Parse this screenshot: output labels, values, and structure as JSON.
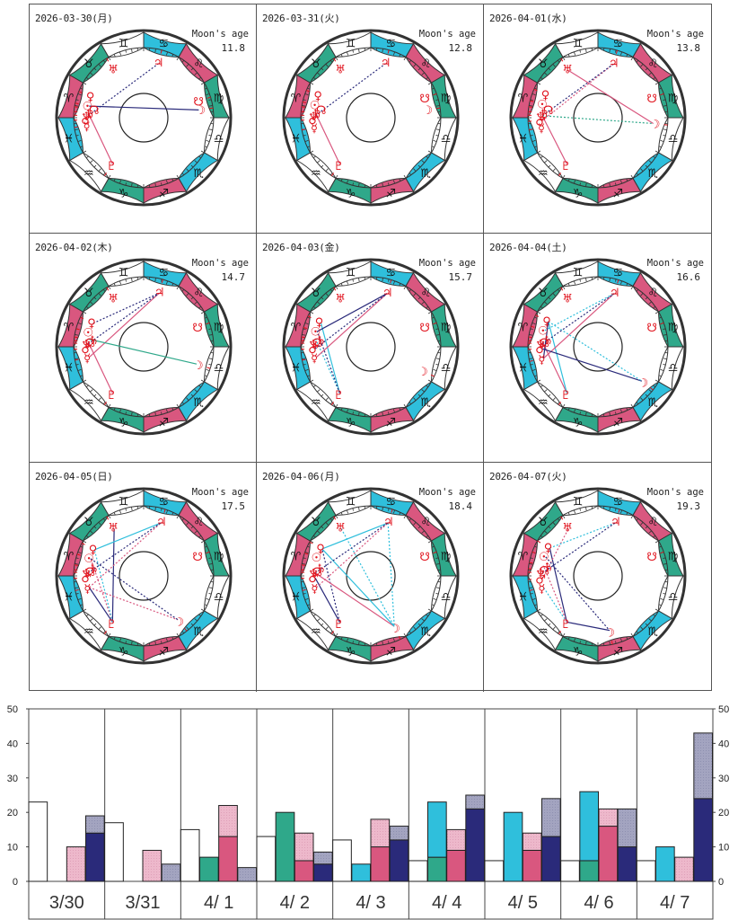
{
  "colors": {
    "pink": "#d9577f",
    "green": "#2fa88a",
    "cyan": "#2fbfdc",
    "white": "#ffffff",
    "planet": "#e0101a",
    "navy": "#2a2a7a",
    "gray_hatch": "#a3a4c0",
    "pink_light": "#edb8cb"
  },
  "moon_age_label": "Moon's age",
  "signs": [
    {
      "name": "aries",
      "glyph": "♈",
      "color": "pink"
    },
    {
      "name": "taurus",
      "glyph": "♉",
      "color": "green"
    },
    {
      "name": "gemini",
      "glyph": "♊",
      "color": "white"
    },
    {
      "name": "cancer",
      "glyph": "♋",
      "color": "cyan"
    },
    {
      "name": "leo",
      "glyph": "♌",
      "color": "pink"
    },
    {
      "name": "virgo",
      "glyph": "♍",
      "color": "green"
    },
    {
      "name": "libra",
      "glyph": "♎",
      "color": "white"
    },
    {
      "name": "scorpio",
      "glyph": "♏",
      "color": "cyan"
    },
    {
      "name": "sagittarius",
      "glyph": "♐",
      "color": "pink"
    },
    {
      "name": "capricorn",
      "glyph": "♑",
      "color": "green"
    },
    {
      "name": "aquarius",
      "glyph": "♒",
      "color": "white"
    },
    {
      "name": "pisces",
      "glyph": "♓",
      "color": "cyan"
    }
  ],
  "charts": [
    {
      "date": "2026-03-30(月)",
      "moon_age": "11.8",
      "planets": {
        "pluto": 304,
        "mercury": 352,
        "mars": 358,
        "neptune": 2,
        "saturn": 5,
        "node": 9,
        "sun": 12,
        "venus": 22,
        "uranus": 58,
        "jupiter": 105,
        "south_node": 163,
        "moon": 172
      },
      "aspects": [
        {
          "a": "pluto",
          "b": "saturn",
          "color": "pink",
          "dash": false
        },
        {
          "a": "neptune",
          "b": "jupiter",
          "color": "navy",
          "dash": true
        },
        {
          "a": "sun",
          "b": "moon",
          "color": "navy",
          "dash": false
        }
      ]
    },
    {
      "date": "2026-03-31(火)",
      "moon_age": "12.8",
      "planets": {
        "pluto": 304,
        "mercury": 350,
        "mars": 358,
        "neptune": 2,
        "saturn": 5,
        "node": 9,
        "sun": 13,
        "venus": 23,
        "uranus": 58,
        "jupiter": 105,
        "south_node": 160,
        "moon": 172
      },
      "aspects": [
        {
          "a": "pluto",
          "b": "saturn",
          "color": "pink",
          "dash": false
        },
        {
          "a": "neptune",
          "b": "jupiter",
          "color": "navy",
          "dash": true
        }
      ]
    },
    {
      "date": "2026-04-01(水)",
      "moon_age": "13.8",
      "planets": {
        "pluto": 304,
        "mercury": 350,
        "mars": 357,
        "neptune": 2,
        "saturn": 5,
        "node": 9,
        "sun": 14,
        "venus": 24,
        "uranus": 58,
        "jupiter": 106,
        "south_node": 160,
        "moon": 186
      },
      "aspects": [
        {
          "a": "pluto",
          "b": "neptune",
          "color": "pink",
          "dash": false
        },
        {
          "a": "mars",
          "b": "jupiter",
          "color": "pink",
          "dash": true
        },
        {
          "a": "neptune",
          "b": "jupiter",
          "color": "navy",
          "dash": true
        },
        {
          "a": "neptune",
          "b": "moon",
          "color": "green",
          "dash": true
        },
        {
          "a": "uranus",
          "b": "moon",
          "color": "pink",
          "dash": false
        }
      ]
    },
    {
      "date": "2026-04-02(木)",
      "moon_age": "14.7",
      "planets": {
        "pluto": 304,
        "mercury": 349,
        "mars": 358,
        "neptune": 3,
        "saturn": 8,
        "node": 5,
        "sun": 15,
        "venus": 25,
        "uranus": 58,
        "jupiter": 106,
        "south_node": 160,
        "moon": 198
      },
      "aspects": [
        {
          "a": "pluto",
          "b": "node",
          "color": "pink",
          "dash": false
        },
        {
          "a": "mercury",
          "b": "jupiter",
          "color": "pink",
          "dash": false
        },
        {
          "a": "neptune",
          "b": "jupiter",
          "color": "navy",
          "dash": true
        },
        {
          "a": "venus",
          "b": "jupiter",
          "color": "navy",
          "dash": true
        },
        {
          "a": "saturn",
          "b": "moon",
          "color": "green",
          "dash": false
        }
      ]
    },
    {
      "date": "2026-04-03(金)",
      "moon_age": "15.7",
      "planets": {
        "pluto": 304,
        "mercury": 349,
        "mars": 358,
        "neptune": 3,
        "saturn": 8,
        "node": 5,
        "sun": 16,
        "venus": 26,
        "uranus": 58,
        "jupiter": 107,
        "south_node": 160,
        "moon": 205
      },
      "aspects": [
        {
          "a": "pluto",
          "b": "venus",
          "color": "cyan",
          "dash": false
        },
        {
          "a": "pluto",
          "b": "saturn",
          "color": "cyan",
          "dash": true
        },
        {
          "a": "mercury",
          "b": "jupiter",
          "color": "pink",
          "dash": false
        },
        {
          "a": "mars",
          "b": "jupiter",
          "color": "navy",
          "dash": true
        },
        {
          "a": "sun",
          "b": "jupiter",
          "color": "navy",
          "dash": false
        },
        {
          "a": "pluto",
          "b": "sun",
          "color": "navy",
          "dash": true
        }
      ]
    },
    {
      "date": "2026-04-04(土)",
      "moon_age": "16.6",
      "planets": {
        "pluto": 304,
        "mercury": 348,
        "mars": 358,
        "neptune": 3,
        "saturn": 8,
        "node": 5,
        "sun": 17,
        "venus": 27,
        "uranus": 58,
        "jupiter": 107,
        "south_node": 160,
        "moon": 218
      },
      "aspects": [
        {
          "a": "pluto",
          "b": "node",
          "color": "pink",
          "dash": false
        },
        {
          "a": "pluto",
          "b": "venus",
          "color": "cyan",
          "dash": false
        },
        {
          "a": "mercury",
          "b": "jupiter",
          "color": "pink",
          "dash": false
        },
        {
          "a": "mercury",
          "b": "venus",
          "color": "navy",
          "dash": false
        },
        {
          "a": "mars",
          "b": "moon",
          "color": "navy",
          "dash": false
        },
        {
          "a": "venus",
          "b": "moon",
          "color": "cyan",
          "dash": true
        },
        {
          "a": "sun",
          "b": "jupiter",
          "color": "cyan",
          "dash": true
        },
        {
          "a": "neptune",
          "b": "jupiter",
          "color": "navy",
          "dash": true
        }
      ]
    },
    {
      "date": "2026-04-05(日)",
      "moon_age": "17.5",
      "planets": {
        "pluto": 304,
        "mercury": 348,
        "mars": 358,
        "neptune": 3,
        "saturn": 9,
        "node": 5,
        "sun": 18,
        "venus": 28,
        "uranus": 58,
        "jupiter": 108,
        "south_node": 160,
        "moon": 232
      },
      "aspects": [
        {
          "a": "pluto",
          "b": "mercury",
          "color": "navy",
          "dash": false
        },
        {
          "a": "pluto",
          "b": "uranus",
          "color": "navy",
          "dash": false
        },
        {
          "a": "pluto",
          "b": "sun",
          "color": "pink",
          "dash": true
        },
        {
          "a": "pluto",
          "b": "venus",
          "color": "cyan",
          "dash": true
        },
        {
          "a": "mercury",
          "b": "moon",
          "color": "pink",
          "dash": true
        },
        {
          "a": "sun",
          "b": "moon",
          "color": "navy",
          "dash": true
        },
        {
          "a": "venus",
          "b": "jupiter",
          "color": "cyan",
          "dash": false
        },
        {
          "a": "mercury",
          "b": "jupiter",
          "color": "pink",
          "dash": true
        },
        {
          "a": "neptune",
          "b": "jupiter",
          "color": "navy",
          "dash": true
        }
      ]
    },
    {
      "date": "2026-04-06(月)",
      "moon_age": "18.4",
      "planets": {
        "pluto": 304,
        "mercury": 348,
        "mars": 358,
        "neptune": 3,
        "saturn": 9,
        "node": 5,
        "sun": 19,
        "venus": 29,
        "uranus": 58,
        "jupiter": 108,
        "south_node": 160,
        "moon": 245
      },
      "aspects": [
        {
          "a": "pluto",
          "b": "mars",
          "color": "navy",
          "dash": false
        },
        {
          "a": "pluto",
          "b": "venus",
          "color": "navy",
          "dash": true
        },
        {
          "a": "neptune",
          "b": "moon",
          "color": "pink",
          "dash": false
        },
        {
          "a": "venus",
          "b": "moon",
          "color": "cyan",
          "dash": false
        },
        {
          "a": "uranus",
          "b": "moon",
          "color": "cyan",
          "dash": true
        },
        {
          "a": "jupiter",
          "b": "moon",
          "color": "cyan",
          "dash": true
        },
        {
          "a": "venus",
          "b": "jupiter",
          "color": "cyan",
          "dash": false
        },
        {
          "a": "mercury",
          "b": "jupiter",
          "color": "pink",
          "dash": true
        },
        {
          "a": "neptune",
          "b": "jupiter",
          "color": "navy",
          "dash": true
        }
      ]
    },
    {
      "date": "2026-04-07(火)",
      "moon_age": "19.3",
      "planets": {
        "pluto": 304,
        "mercury": 348,
        "mars": 357,
        "neptune": 3,
        "saturn": 11,
        "node": 6,
        "sun": 20,
        "venus": 30,
        "uranus": 58,
        "jupiter": 108,
        "south_node": 160,
        "moon": 258
      },
      "aspects": [
        {
          "a": "pluto",
          "b": "moon",
          "color": "navy",
          "dash": false
        },
        {
          "a": "pluto",
          "b": "venus",
          "color": "navy",
          "dash": false
        },
        {
          "a": "pluto",
          "b": "mercury",
          "color": "cyan",
          "dash": true
        },
        {
          "a": "pluto",
          "b": "saturn",
          "color": "pink",
          "dash": true
        },
        {
          "a": "mars",
          "b": "uranus",
          "color": "pink",
          "dash": true
        },
        {
          "a": "sun",
          "b": "moon",
          "color": "navy",
          "dash": true
        },
        {
          "a": "venus",
          "b": "jupiter",
          "color": "cyan",
          "dash": true
        },
        {
          "a": "neptune",
          "b": "jupiter",
          "color": "navy",
          "dash": true
        }
      ]
    }
  ],
  "planet_glyphs": {
    "pluto": "♇",
    "mercury": "☿",
    "mars": "♂",
    "neptune": "♆",
    "saturn": "♄",
    "node": "☊",
    "sun": "☉",
    "venus": "♀",
    "uranus": "♅",
    "jupiter": "♃",
    "south_node": "☋",
    "moon": "☽"
  },
  "chart_data": {
    "type": "bar",
    "title": "",
    "xlabel": "",
    "ylabel": "",
    "ylim": [
      0,
      50
    ],
    "yticks": [
      0,
      10,
      20,
      30,
      40,
      50
    ],
    "y_axis": "both-sides",
    "grid": false,
    "categories": [
      "3/30",
      "3/31",
      "4/ 1",
      "4/ 2",
      "4/ 3",
      "4/ 4",
      "4/ 5",
      "4/ 6",
      "4/ 7"
    ],
    "series": [
      {
        "name": "white-outline",
        "slot": 0,
        "color": "white",
        "values": [
          23,
          17,
          15,
          13,
          12,
          6,
          6,
          6,
          6
        ]
      },
      {
        "name": "green",
        "slot": 1,
        "color": "green",
        "values": [
          0,
          0,
          7,
          20,
          0,
          7,
          0,
          6,
          0
        ]
      },
      {
        "name": "cyan",
        "slot": 1,
        "stack_on": "green",
        "color": "cyan",
        "values": [
          0,
          0,
          0,
          0,
          5,
          16,
          20,
          20,
          10
        ]
      },
      {
        "name": "pink",
        "slot": 2,
        "color": "pink",
        "values": [
          0,
          0,
          13,
          6,
          10,
          9,
          9,
          16,
          0
        ]
      },
      {
        "name": "pink-light",
        "slot": 2,
        "stack_on": "pink",
        "color": "pink_light",
        "values": [
          10,
          9,
          9,
          8,
          8,
          6,
          5,
          5,
          7
        ]
      },
      {
        "name": "navy",
        "slot": 3,
        "color": "navy",
        "values": [
          14,
          0,
          0,
          5,
          12,
          21,
          13,
          10,
          24
        ]
      },
      {
        "name": "gray",
        "slot": 3,
        "stack_on": "navy",
        "color": "gray_hatch",
        "values": [
          5,
          5,
          4,
          3.5,
          4,
          4,
          11,
          11,
          19
        ]
      }
    ]
  }
}
